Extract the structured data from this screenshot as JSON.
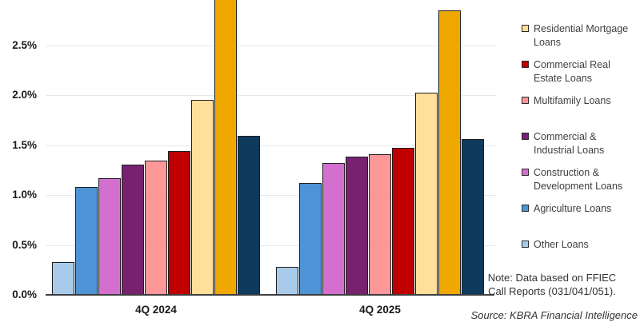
{
  "chart_data": {
    "type": "bar",
    "title": "",
    "categories": [
      "4Q 2024",
      "4Q 2025"
    ],
    "series": [
      {
        "key": "other-loans",
        "name": "Other Loans",
        "color": "#A9CBEA",
        "values": [
          0.33,
          0.28
        ]
      },
      {
        "key": "agriculture-loans",
        "name": "Agriculture Loans",
        "color": "#4E93D6",
        "values": [
          1.08,
          1.12
        ]
      },
      {
        "key": "construction-development-loans",
        "name": "Construction & Development Loans",
        "color": "#D36FCE",
        "values": [
          1.17,
          1.32
        ]
      },
      {
        "key": "commercial-industrial-loans",
        "name": "Commercial & Industrial Loans",
        "color": "#76226F",
        "values": [
          1.3,
          1.38
        ]
      },
      {
        "key": "multifamily-loans",
        "name": "Multifamily Loans",
        "color": "#FE9898",
        "values": [
          1.34,
          1.41
        ]
      },
      {
        "key": "commercial-real-estate-loans",
        "name": "Commercial Real Estate Loans",
        "color": "#C00000",
        "values": [
          1.44,
          1.47
        ]
      },
      {
        "key": "residential-mortgage-loans",
        "name": "Residential Mortgage Loans",
        "color": "#FFDF99",
        "values": [
          1.95,
          2.02
        ]
      },
      {
        "key": "gold-unlabeled",
        "name": "",
        "color": "#EFA800",
        "values": [
          2.96,
          2.85
        ],
        "clipped_at_top": [
          true,
          false
        ],
        "legend_visible": false
      },
      {
        "key": "navy-unlabeled",
        "name": "",
        "color": "#0E3A5E",
        "values": [
          1.59,
          1.56
        ],
        "legend_visible": false
      }
    ],
    "display_notes": "Left gold bar extends beyond the top edge of the image; gold and navy series have no legend entry visible in the screenshot.",
    "xlabel": "",
    "ylabel": "",
    "ylim": [
      0,
      2.96
    ],
    "ytick_values": [
      0,
      0.5,
      1.0,
      1.5,
      2.0,
      2.5
    ],
    "ytick_labels": [
      "0.0%",
      "0.5%",
      "1.0%",
      "1.5%",
      "2.0%",
      "2.5%"
    ],
    "grid": true,
    "legend_position": "right"
  },
  "legend": {
    "items": [
      {
        "lines": [
          "Residential Mortgage",
          "Loans"
        ],
        "color": "#FFDF99"
      },
      {
        "lines": [
          "Commercial Real",
          "Estate Loans"
        ],
        "color": "#C00000"
      },
      {
        "lines": [
          "Multifamily Loans"
        ],
        "color": "#FE9898"
      },
      {
        "lines": [
          "Commercial &",
          "Industrial Loans"
        ],
        "color": "#76226F"
      },
      {
        "lines": [
          "Construction &",
          "Development Loans"
        ],
        "color": "#D36FCE"
      },
      {
        "lines": [
          "Agriculture Loans"
        ],
        "color": "#4E93D6"
      },
      {
        "lines": [
          "Other Loans"
        ],
        "color": "#A9CBEA"
      }
    ]
  },
  "notes": {
    "note_lines": [
      "Note: Data based on FFIEC",
      "Call Reports (031/041/051)."
    ],
    "source": "Source: KBRA Financial Intelligence"
  },
  "colors": {
    "gridline": "#E7E7E7",
    "axis_line": "#3F3F3F",
    "bar_border": "#1F1F1F",
    "text": "#1A1A1A"
  }
}
